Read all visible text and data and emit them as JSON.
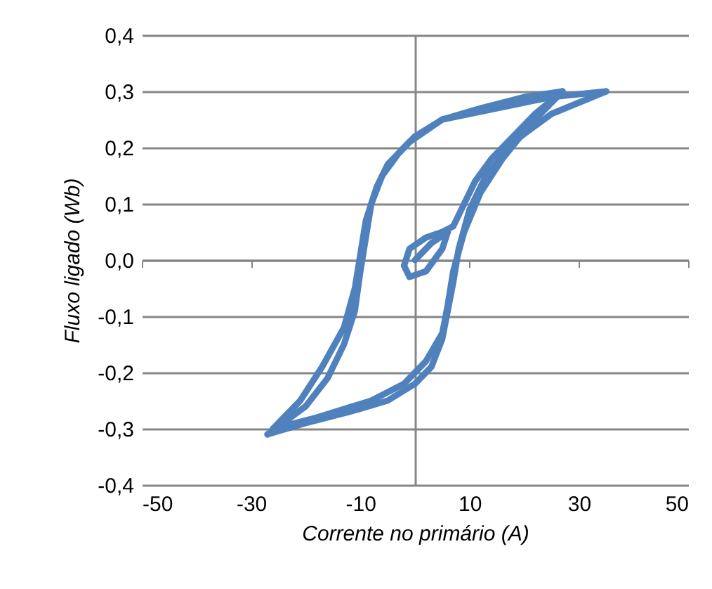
{
  "chart_data": {
    "type": "line",
    "xlabel": "Corrente no primário (A)",
    "ylabel": "Fluxo ligado (Wb)",
    "xlim": [
      -50,
      50
    ],
    "ylim": [
      -0.4,
      0.4
    ],
    "xticks": [
      -50,
      -30,
      -10,
      10,
      30,
      50
    ],
    "yticks": [
      {
        "value": -0.4,
        "label": "-0,4"
      },
      {
        "value": -0.3,
        "label": "-0,3"
      },
      {
        "value": -0.2,
        "label": "-0,2"
      },
      {
        "value": -0.1,
        "label": "-0,1"
      },
      {
        "value": 0,
        "label": "0,0"
      },
      {
        "value": 0.1,
        "label": "0,1"
      },
      {
        "value": 0.2,
        "label": "0,2"
      },
      {
        "value": 0.3,
        "label": "0,3"
      },
      {
        "value": 0.4,
        "label": "0,4"
      }
    ],
    "grid": "y",
    "series": [
      {
        "color": "#4f81bd",
        "x": [
          0,
          3,
          6
        ],
        "values": [
          0.0,
          0.03,
          0.05
        ]
      },
      {
        "color": "#4f81bd",
        "x": [
          6,
          5,
          2,
          -1,
          -2
        ],
        "values": [
          0.05,
          0.02,
          -0.02,
          -0.03,
          -0.01
        ]
      },
      {
        "color": "#4f81bd",
        "x": [
          -2,
          -1,
          2,
          5,
          7,
          9,
          11,
          14,
          18,
          22,
          27
        ],
        "values": [
          -0.01,
          0.02,
          0.04,
          0.05,
          0.06,
          0.1,
          0.14,
          0.18,
          0.22,
          0.26,
          0.3
        ]
      },
      {
        "color": "#4f81bd",
        "x": [
          27,
          20,
          12,
          5,
          0,
          -3,
          -6,
          -8,
          -9,
          -10,
          -11,
          -13,
          -16,
          -20,
          -27
        ],
        "values": [
          0.3,
          0.29,
          0.27,
          0.25,
          0.22,
          0.19,
          0.15,
          0.1,
          0.04,
          -0.02,
          -0.09,
          -0.15,
          -0.21,
          -0.26,
          -0.31
        ]
      },
      {
        "color": "#4f81bd",
        "x": [
          -27,
          -20,
          -12,
          -5,
          0,
          3,
          5,
          6,
          7,
          8,
          10,
          13,
          18,
          25,
          35
        ],
        "values": [
          -0.31,
          -0.29,
          -0.27,
          -0.25,
          -0.22,
          -0.19,
          -0.14,
          -0.09,
          -0.04,
          0.02,
          0.09,
          0.15,
          0.21,
          0.26,
          0.3
        ]
      },
      {
        "color": "#4f81bd",
        "x": [
          35,
          25,
          15,
          5,
          -1,
          -5,
          -7,
          -9,
          -10,
          -11,
          -13,
          -17,
          -21,
          -26
        ],
        "values": [
          0.3,
          0.29,
          0.27,
          0.25,
          0.21,
          0.17,
          0.13,
          0.07,
          0.01,
          -0.05,
          -0.12,
          -0.19,
          -0.25,
          -0.3
        ]
      },
      {
        "color": "#4f81bd",
        "x": [
          -26,
          -18,
          -8,
          -2,
          2,
          5,
          6,
          7,
          9,
          12,
          16,
          21,
          27
        ],
        "values": [
          -0.3,
          -0.28,
          -0.25,
          -0.22,
          -0.18,
          -0.13,
          -0.08,
          -0.02,
          0.05,
          0.12,
          0.18,
          0.24,
          0.3
        ]
      }
    ]
  }
}
